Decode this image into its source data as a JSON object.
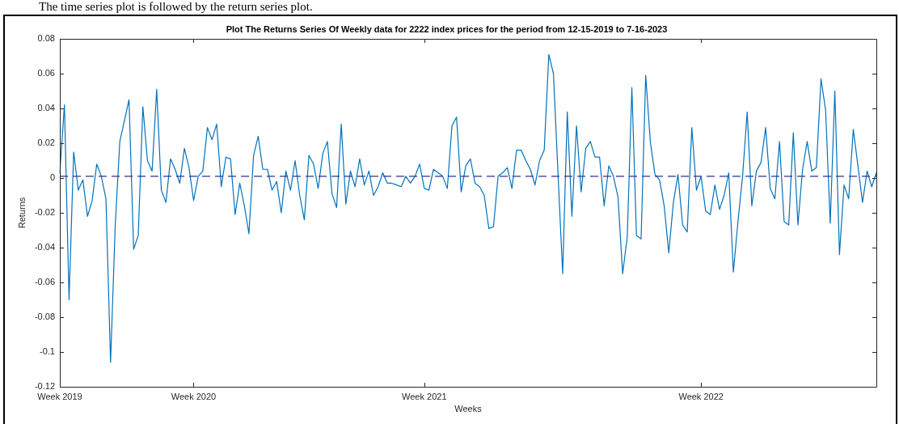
{
  "chart_data": {
    "type": "line",
    "title": "Plot The Returns Series Of Weekly data for 2222 index prices for the period from 12-15-2019 to 7-16-2023",
    "xlabel": "Weeks",
    "ylabel": "Returns",
    "color": "#0072bd",
    "annotations": [
      "The time series plot is followed by the return series plot."
    ],
    "categories": [
      "Week 2019",
      null,
      null,
      null,
      null,
      null,
      null,
      null,
      null,
      null,
      null,
      null,
      null,
      null,
      null,
      null,
      null,
      null,
      null,
      null,
      null,
      null,
      null,
      null,
      null,
      null,
      null,
      null,
      null,
      "Week 2020",
      null,
      null,
      null,
      null,
      null,
      null,
      null,
      null,
      null,
      null,
      null,
      null,
      null,
      null,
      null,
      null,
      null,
      null,
      null,
      null,
      null,
      null,
      null,
      null,
      null,
      null,
      null,
      null,
      null,
      null,
      null,
      null,
      null,
      null,
      null,
      null,
      null,
      null,
      null,
      null,
      null,
      null,
      null,
      null,
      null,
      null,
      null,
      null,
      null,
      "Week 2021",
      null,
      null,
      null,
      null,
      null,
      null,
      null,
      null,
      null,
      null,
      null,
      null,
      null,
      null,
      null,
      null,
      null,
      null,
      null,
      null,
      null,
      null,
      null,
      null,
      null,
      null,
      null,
      null,
      null,
      null,
      null,
      null,
      null,
      null,
      null,
      null,
      null,
      null,
      null,
      null,
      null,
      null,
      null,
      null,
      null,
      null,
      null,
      null,
      null,
      null,
      null,
      null,
      null,
      null,
      null,
      null,
      null,
      null,
      null,
      "Week 2022",
      null,
      null,
      null,
      null,
      null,
      null,
      null,
      null,
      null,
      null,
      null,
      null,
      null,
      null,
      null,
      null,
      null,
      null,
      null,
      null,
      null,
      null,
      null,
      null,
      null,
      null,
      null,
      null,
      null,
      null,
      null,
      null,
      null,
      null,
      null,
      null,
      null,
      null
    ],
    "values": [
      0.003,
      0.042,
      -0.07,
      0.015,
      -0.007,
      -0.001,
      -0.022,
      -0.013,
      0.008,
      0.001,
      -0.012,
      -0.106,
      -0.028,
      0.021,
      0.033,
      0.045,
      -0.041,
      -0.033,
      0.041,
      0.01,
      0.004,
      0.051,
      -0.007,
      -0.014,
      0.011,
      0.005,
      -0.003,
      0.017,
      0.006,
      -0.013,
      0.001,
      0.004,
      0.029,
      0.022,
      0.031,
      -0.005,
      0.012,
      0.011,
      -0.021,
      -0.003,
      -0.016,
      -0.032,
      0.013,
      0.024,
      0.005,
      0.005,
      -0.007,
      -0.002,
      -0.02,
      0.004,
      -0.007,
      0.01,
      -0.01,
      -0.024,
      0.013,
      0.008,
      -0.006,
      0.014,
      0.021,
      -0.009,
      -0.017,
      0.031,
      -0.015,
      0.004,
      -0.005,
      0.011,
      -0.004,
      0.004,
      -0.01,
      -0.005,
      0.003,
      -0.003,
      -0.003,
      -0.004,
      -0.005,
      0.001,
      -0.003,
      0.001,
      0.008,
      -0.006,
      -0.007,
      0.005,
      0.003,
      0.001,
      -0.006,
      0.03,
      0.035,
      -0.008,
      0.007,
      0.011,
      -0.003,
      -0.005,
      -0.01,
      -0.029,
      -0.028,
      0.001,
      0.003,
      0.006,
      -0.006,
      0.016,
      0.016,
      0.01,
      0.005,
      -0.004,
      0.01,
      0.016,
      0.071,
      0.06,
      0.002,
      -0.055,
      0.038,
      -0.022,
      0.03,
      -0.008,
      0.017,
      0.021,
      0.012,
      0.012,
      -0.016,
      0.007,
      0.001,
      -0.011,
      -0.055,
      -0.034,
      0.052,
      -0.033,
      -0.035,
      0.059,
      0.021,
      0.002,
      -0.001,
      -0.016,
      -0.043,
      -0.014,
      0.002,
      -0.027,
      -0.031,
      0.029,
      -0.007,
      0.001,
      -0.019,
      -0.021,
      -0.004,
      -0.018,
      -0.01,
      0.003,
      -0.054,
      -0.025,
      0.001,
      0.038,
      -0.016,
      0.004,
      0.009,
      0.029,
      -0.006,
      -0.012,
      0.021,
      -0.025,
      -0.027,
      0.026,
      -0.027,
      0.005,
      0.021,
      0.004,
      0.006,
      0.057,
      0.039,
      -0.026,
      0.05,
      -0.044,
      -0.004,
      -0.012,
      0.028,
      0.007,
      -0.014,
      0.004,
      -0.005,
      0.003
    ],
    "ylim": [
      -0.12,
      0.08
    ],
    "yticks": [
      -0.12,
      -0.1,
      -0.08,
      -0.06,
      -0.04,
      -0.02,
      0,
      0.02,
      0.04,
      0.06,
      0.08
    ],
    "ref_lines": [
      {
        "axis": "y",
        "value": 0.001,
        "color": "#2e3192",
        "line_style": "dashed"
      }
    ]
  }
}
